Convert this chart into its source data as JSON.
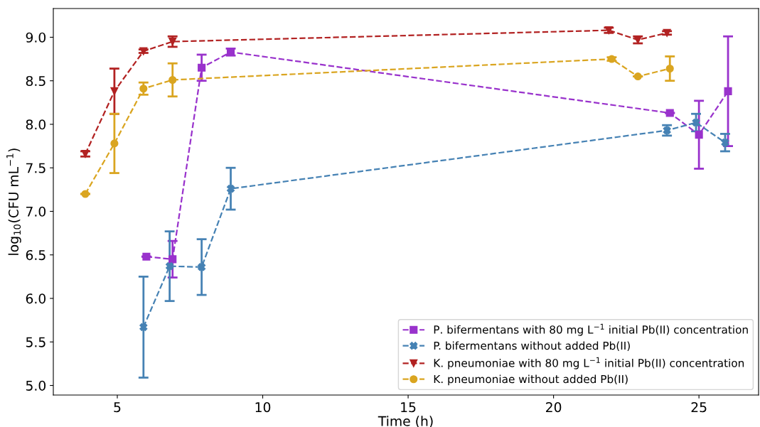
{
  "chart_data": {
    "type": "line",
    "xlabel": "Time (h)",
    "ylabel": "log$_{10}$(CFU mL$^{−1}$)",
    "xlim": [
      2.8,
      27.05
    ],
    "ylim": [
      4.89,
      9.33
    ],
    "xticks": [
      5,
      10,
      15,
      20,
      25
    ],
    "yticks": [
      {
        "value": 5,
        "label": "5.0"
      },
      {
        "value": 5.5,
        "label": "5.5"
      },
      {
        "value": 6,
        "label": "6.0"
      },
      {
        "value": 6.5,
        "label": "6.5"
      },
      {
        "value": 7,
        "label": "7.0"
      },
      {
        "value": 7.5,
        "label": "7.5"
      },
      {
        "value": 8,
        "label": "8.0"
      },
      {
        "value": 8.5,
        "label": "8.5"
      },
      {
        "value": 9,
        "label": "9.0"
      }
    ],
    "grid": false,
    "legend": "bottom right",
    "line_style": "dashed",
    "series": [
      {
        "name": "P. bifermentans with 80 mg L$^{−1}$ initial Pb(II) concentration",
        "color": "#9932cc",
        "marker": "square",
        "x": [
          6,
          6.9,
          7.9,
          8.9,
          24,
          25,
          26
        ],
        "values": [
          6.48,
          6.45,
          8.65,
          8.83,
          8.13,
          7.88,
          8.38
        ],
        "errors": [
          null,
          0.21,
          0.15,
          0.04,
          null,
          0.39,
          0.63
        ]
      },
      {
        "name": "P. bifermentans without added Pb(II)",
        "color": "#4682b4",
        "marker": "cross",
        "x": [
          5.9,
          6.8,
          7.9,
          8.9,
          23.9,
          24.9,
          25.9
        ],
        "values": [
          5.67,
          6.37,
          6.36,
          7.26,
          7.93,
          8.02,
          7.79
        ],
        "errors": [
          0.58,
          0.4,
          0.32,
          0.24,
          0.06,
          0.1,
          0.1
        ]
      },
      {
        "name": "K. pneumoniae with 80 mg L$^{−1}$ initial Pb(II) concentration",
        "color": "#b22222",
        "marker": "triangle",
        "x": [
          3.9,
          4.9,
          5.9,
          6.9,
          21.9,
          22.9,
          23.9
        ],
        "values": [
          7.66,
          8.38,
          8.84,
          8.95,
          9.08,
          8.97,
          9.05
        ],
        "errors": [
          0.03,
          0.26,
          0.02,
          0.06,
          0.03,
          0.04,
          0.02
        ]
      },
      {
        "name": "K. pneumoniae without added Pb(II)",
        "color": "#daa520",
        "marker": "circle",
        "x": [
          3.9,
          4.9,
          5.9,
          6.9,
          22,
          22.9,
          24
        ],
        "values": [
          7.2,
          7.78,
          8.41,
          8.51,
          8.75,
          8.55,
          8.64
        ],
        "errors": [
          null,
          0.34,
          0.07,
          0.19,
          0.02,
          null,
          0.14
        ]
      }
    ]
  }
}
